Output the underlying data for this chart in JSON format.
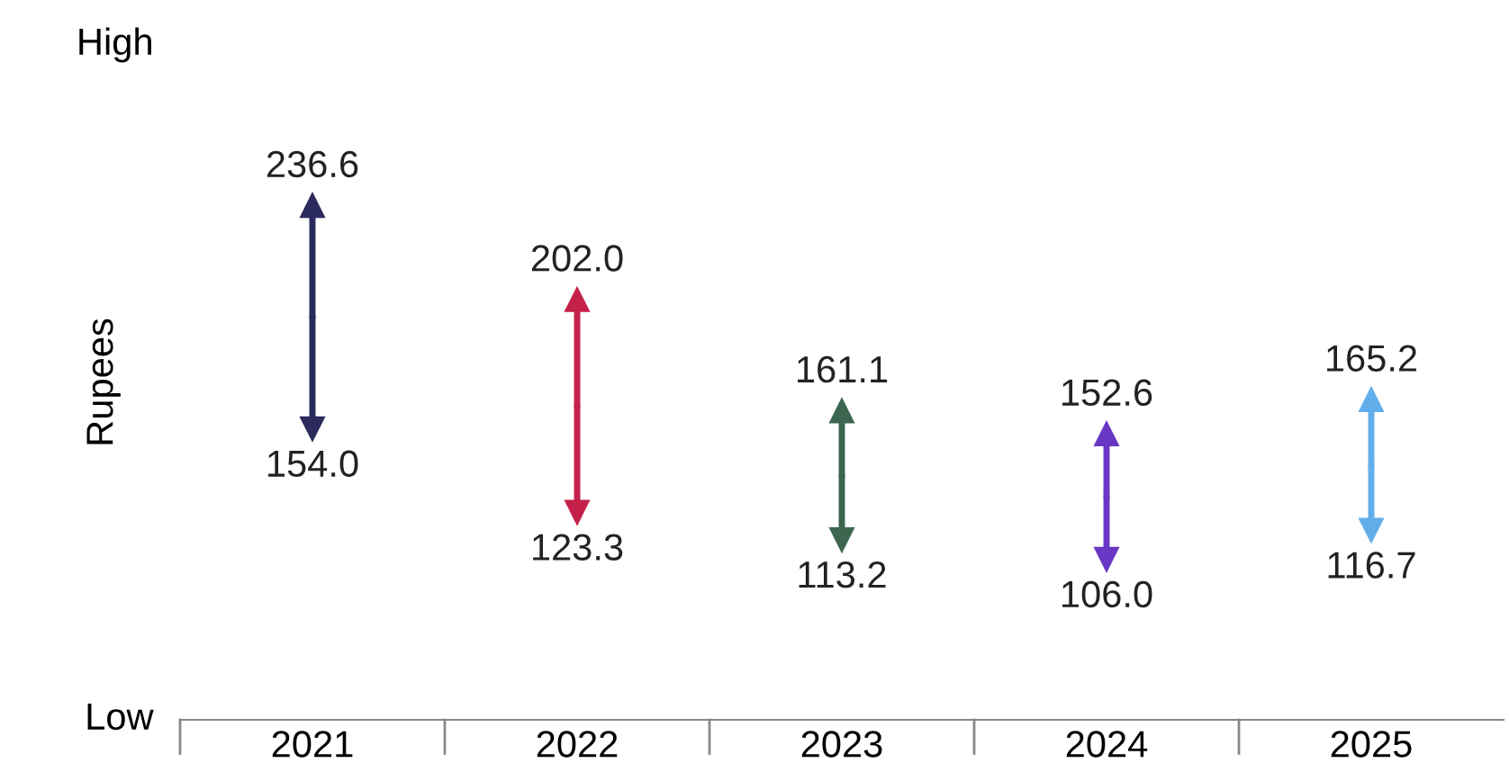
{
  "chart_data": {
    "type": "scatter",
    "ylabel": "Rupees",
    "categories": [
      "2021",
      "2022",
      "2023",
      "2024",
      "2025"
    ],
    "series": [
      {
        "values": [
          236.6,
          202.0,
          161.1,
          152.6,
          165.2
        ],
        "value_labels": [
          "236.6",
          "202.0",
          "161.1",
          "152.6",
          "165.2"
        ],
        "colors": [
          "#2b2a5c",
          "#c4214a",
          "#3d6650",
          "#6838c4",
          "#62aeea"
        ]
      },
      {
        "values": [
          154.0,
          123.3,
          113.2,
          106.0,
          116.7
        ],
        "value_labels": [
          "154.0",
          "123.3",
          "113.2",
          "106.0",
          "116.7"
        ],
        "colors": [
          "#2b2a5c",
          "#c4214a",
          "#3d6650",
          "#6838c4",
          "#62aeea"
        ]
      }
    ],
    "marker": "triangle",
    "annotations": [
      "High",
      "Low"
    ],
    "legend": false
  }
}
